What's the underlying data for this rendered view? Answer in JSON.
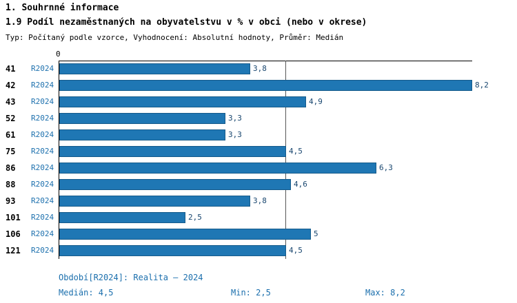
{
  "header": {
    "title": "1. Souhrnné informace",
    "subtitle": "1.9 Podíl nezaměstnaných na obyvatelstvu v % v obci (nebo v okrese)",
    "meta": "Typ: Počítaný podle vzorce, Vyhodnocení: Absolutní hodnoty, Průměr: Medián"
  },
  "chart_data": {
    "type": "bar",
    "orientation": "horizontal",
    "title": "1.9 Podíl nezaměstnaných na obyvatelstvu v % v obci (nebo v okrese)",
    "categories": [
      "41",
      "42",
      "43",
      "52",
      "61",
      "75",
      "86",
      "88",
      "93",
      "101",
      "106",
      "121"
    ],
    "period_label": "R2024",
    "values": [
      3.8,
      8.2,
      4.9,
      3.3,
      3.3,
      4.5,
      6.3,
      4.6,
      3.8,
      2.5,
      5,
      4.5
    ],
    "value_labels": [
      "3,8",
      "8,2",
      "4,9",
      "3,3",
      "3,3",
      "4,5",
      "6,3",
      "4,6",
      "3,8",
      "2,5",
      "5",
      "4,5"
    ],
    "xlim": [
      0,
      8.2
    ],
    "axis_zero_label": "0",
    "median_line_value": 4.5,
    "grid": "single vertical line at median",
    "legend": "none",
    "colors": {
      "bar": "#1f77b4",
      "bar_border": "#155a8a",
      "blue_text": "#1b6fad",
      "value_text": "#17456e",
      "axis": "#000000",
      "median_line": "#555555"
    }
  },
  "footer": {
    "period": "Období[R2024]: Realita – 2024",
    "median": "Medián: 4,5",
    "min": "Min: 2,5",
    "max": "Max: 8,2"
  }
}
